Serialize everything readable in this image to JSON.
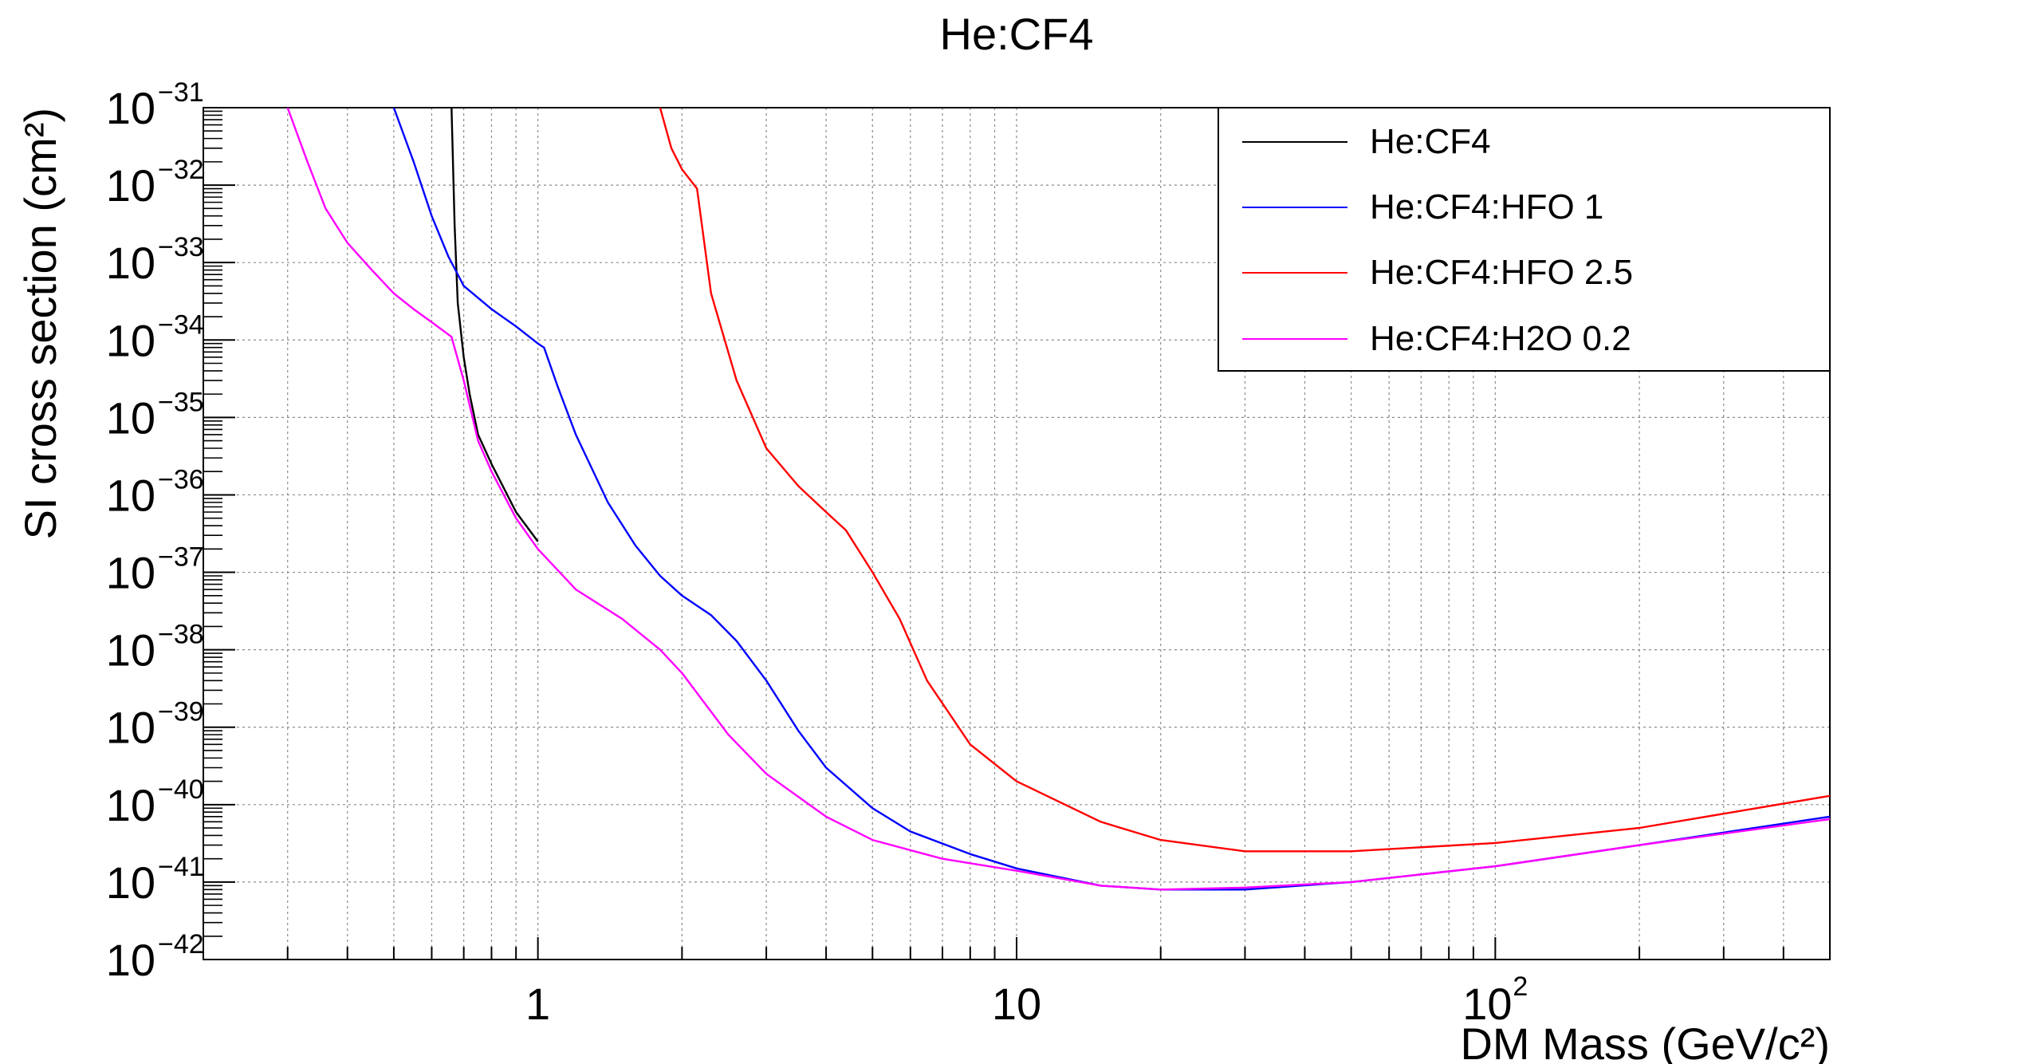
{
  "chart_data": {
    "type": "line",
    "title": "He:CF4",
    "xlabel": "DM Mass (GeV/c²)",
    "ylabel": "SI cross section (cm²)",
    "xscale": "log",
    "yscale": "log",
    "xlim": [
      0.2,
      500
    ],
    "ylim": [
      1e-42,
      1e-31
    ],
    "grid": true,
    "legend_position": "top-right",
    "x_tick_labels": [
      {
        "value": 1,
        "base": "1",
        "exp": ""
      },
      {
        "value": 10,
        "base": "10",
        "exp": ""
      },
      {
        "value": 100,
        "base": "10",
        "exp": "2"
      }
    ],
    "y_tick_labels": [
      {
        "value": 1e-31,
        "base": "10",
        "exp": "−31"
      },
      {
        "value": 1e-32,
        "base": "10",
        "exp": "−32"
      },
      {
        "value": 1e-33,
        "base": "10",
        "exp": "−33"
      },
      {
        "value": 1e-34,
        "base": "10",
        "exp": "−34"
      },
      {
        "value": 1e-35,
        "base": "10",
        "exp": "−35"
      },
      {
        "value": 1e-36,
        "base": "10",
        "exp": "−36"
      },
      {
        "value": 1e-37,
        "base": "10",
        "exp": "−37"
      },
      {
        "value": 1e-38,
        "base": "10",
        "exp": "−38"
      },
      {
        "value": 1e-39,
        "base": "10",
        "exp": "−39"
      },
      {
        "value": 1e-40,
        "base": "10",
        "exp": "−40"
      },
      {
        "value": 1e-41,
        "base": "10",
        "exp": "−41"
      },
      {
        "value": 1e-42,
        "base": "10",
        "exp": "−42"
      }
    ],
    "series": [
      {
        "name": "He:CF4",
        "color": "#000000",
        "points": [
          [
            0.66,
            1e-31
          ],
          [
            0.67,
            3e-33
          ],
          [
            0.68,
            3e-34
          ],
          [
            0.7,
            6e-35
          ],
          [
            0.72,
            2e-35
          ],
          [
            0.75,
            6e-36
          ],
          [
            0.8,
            2.5e-36
          ],
          [
            0.9,
            6e-37
          ],
          [
            1.0,
            2.5e-37
          ]
        ]
      },
      {
        "name": "He:CF4:HFO 1",
        "color": "#0000ff",
        "points": [
          [
            0.5,
            1e-31
          ],
          [
            0.55,
            2e-32
          ],
          [
            0.6,
            4e-33
          ],
          [
            0.65,
            1.2e-33
          ],
          [
            0.7,
            5e-34
          ],
          [
            0.8,
            2.5e-34
          ],
          [
            0.9,
            1.5e-34
          ],
          [
            1.0,
            9e-35
          ],
          [
            1.03,
            8e-35
          ],
          [
            1.1,
            2.5e-35
          ],
          [
            1.2,
            6e-36
          ],
          [
            1.4,
            8e-37
          ],
          [
            1.6,
            2.2e-37
          ],
          [
            1.8,
            9e-38
          ],
          [
            2.0,
            5e-38
          ],
          [
            2.3,
            2.8e-38
          ],
          [
            2.6,
            1.3e-38
          ],
          [
            3.0,
            4e-39
          ],
          [
            3.5,
            9e-40
          ],
          [
            4.0,
            3e-40
          ],
          [
            5.0,
            9e-41
          ],
          [
            6.0,
            4.5e-41
          ],
          [
            8.0,
            2.3e-41
          ],
          [
            10,
            1.5e-41
          ],
          [
            15,
            9e-42
          ],
          [
            20,
            8e-42
          ],
          [
            30,
            8e-42
          ],
          [
            50,
            1e-41
          ],
          [
            100,
            1.6e-41
          ],
          [
            200,
            3e-41
          ],
          [
            500,
            7e-41
          ]
        ]
      },
      {
        "name": "He:CF4:HFO 2.5",
        "color": "#ff0000",
        "points": [
          [
            1.8,
            1e-31
          ],
          [
            1.9,
            3e-32
          ],
          [
            2.0,
            1.6e-32
          ],
          [
            2.15,
            9e-33
          ],
          [
            2.3,
            4e-34
          ],
          [
            2.6,
            3e-35
          ],
          [
            3.0,
            4e-36
          ],
          [
            3.5,
            1.3e-36
          ],
          [
            4.0,
            6e-37
          ],
          [
            4.4,
            3.5e-37
          ],
          [
            5.0,
            1e-37
          ],
          [
            5.7,
            2.5e-38
          ],
          [
            6.5,
            4e-39
          ],
          [
            8.0,
            6e-40
          ],
          [
            10,
            2e-40
          ],
          [
            15,
            6e-41
          ],
          [
            20,
            3.5e-41
          ],
          [
            30,
            2.5e-41
          ],
          [
            50,
            2.5e-41
          ],
          [
            100,
            3.2e-41
          ],
          [
            200,
            5e-41
          ],
          [
            500,
            1.3e-40
          ]
        ]
      },
      {
        "name": "He:CF4:H2O 0.2",
        "color": "#ff00ff",
        "points": [
          [
            0.3,
            1e-31
          ],
          [
            0.33,
            2e-32
          ],
          [
            0.36,
            5e-33
          ],
          [
            0.4,
            1.8e-33
          ],
          [
            0.45,
            8e-34
          ],
          [
            0.5,
            4e-34
          ],
          [
            0.55,
            2.5e-34
          ],
          [
            0.6,
            1.7e-34
          ],
          [
            0.66,
            1.1e-34
          ],
          [
            0.7,
            3e-35
          ],
          [
            0.75,
            5e-36
          ],
          [
            0.8,
            2e-36
          ],
          [
            0.9,
            5e-37
          ],
          [
            1.0,
            2e-37
          ],
          [
            1.2,
            6e-38
          ],
          [
            1.5,
            2.5e-38
          ],
          [
            1.8,
            1e-38
          ],
          [
            2.0,
            5e-39
          ],
          [
            2.5,
            8e-40
          ],
          [
            3.0,
            2.5e-40
          ],
          [
            4.0,
            7e-41
          ],
          [
            5.0,
            3.5e-41
          ],
          [
            7.0,
            2e-41
          ],
          [
            10,
            1.4e-41
          ],
          [
            15,
            9e-42
          ],
          [
            20,
            8e-42
          ],
          [
            30,
            8.5e-42
          ],
          [
            50,
            1e-41
          ],
          [
            100,
            1.6e-41
          ],
          [
            200,
            3e-41
          ],
          [
            500,
            6.5e-41
          ]
        ]
      }
    ]
  }
}
